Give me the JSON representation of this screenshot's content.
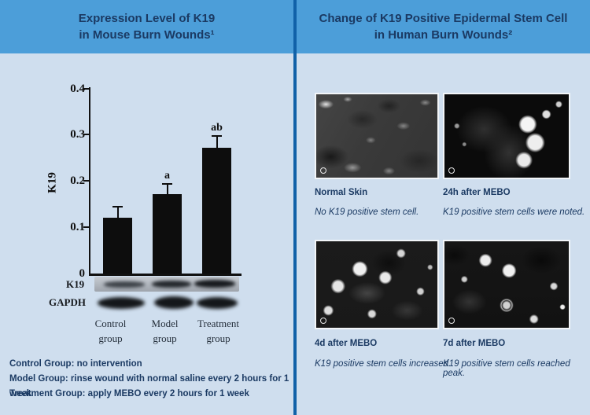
{
  "palette": {
    "header_blue": "#4c9ed9",
    "body_blue": "#cfdeee",
    "divider_blue": "#1161a8",
    "text_navy": "#1b3a63",
    "chart_black": "#0d0d0d"
  },
  "left_panel": {
    "title_line1": "Expression Level of K19",
    "title_line2": "in Mouse Burn Wounds¹",
    "blot_rows": [
      {
        "label": "K19"
      },
      {
        "label": "GAPDH"
      }
    ],
    "group_labels": [
      {
        "line1": "Control",
        "line2": "group"
      },
      {
        "line1": "Model",
        "line2": "group"
      },
      {
        "line1": "Treatment",
        "line2": "group"
      }
    ],
    "footnotes": [
      "Control Group: no intervention",
      "Model Group: rinse wound with normal saline every 2 hours for 1 week",
      "Treatment Group: apply MEBO every 2 hours for 1 week"
    ]
  },
  "right_panel": {
    "title_line1": "Change of K19 Positive Epidermal Stem Cell",
    "title_line2": "in Human Burn Wounds²",
    "figures": [
      {
        "label": "Normal Skin",
        "caption": "No K19 positive stem cell."
      },
      {
        "label": "24h after MEBO",
        "caption": "K19 positive stem cells were noted."
      },
      {
        "label": "4d after MEBO",
        "caption": "K19 positive stem cells increased."
      },
      {
        "label": "7d after MEBO",
        "caption": "K19 positive stem cells reached peak."
      }
    ]
  },
  "chart_data": {
    "type": "bar",
    "categories": [
      "Control group",
      "Model group",
      "Treatment group"
    ],
    "values": [
      0.12,
      0.17,
      0.27
    ],
    "errors": [
      0.022,
      0.02,
      0.024
    ],
    "sig_labels": [
      "",
      "a",
      "ab"
    ],
    "title": "",
    "xlabel": "",
    "ylabel": "K19",
    "ylim": [
      0,
      0.4
    ],
    "yticks": [
      0,
      0.1,
      0.2,
      0.3,
      0.4
    ],
    "ytick_labels_top_down": [
      "0.4",
      "0.3",
      "0.2",
      "0.1",
      "0"
    ],
    "grid": false,
    "legend": false
  }
}
